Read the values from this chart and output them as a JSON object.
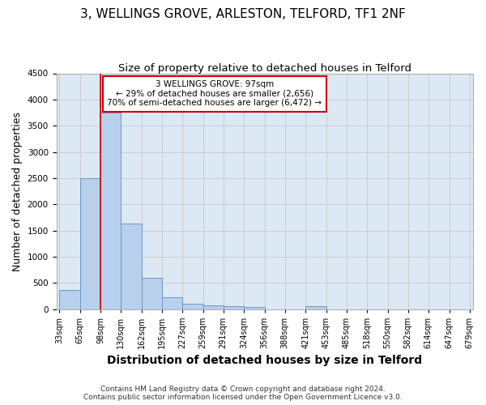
{
  "title": "3, WELLINGS GROVE, ARLESTON, TELFORD, TF1 2NF",
  "subtitle": "Size of property relative to detached houses in Telford",
  "xlabel": "Distribution of detached houses by size in Telford",
  "ylabel": "Number of detached properties",
  "annotation_line1": "3 WELLINGS GROVE: 97sqm",
  "annotation_line2": "← 29% of detached houses are smaller (2,656)",
  "annotation_line3": "70% of semi-detached houses are larger (6,472) →",
  "footer_line1": "Contains HM Land Registry data © Crown copyright and database right 2024.",
  "footer_line2": "Contains public sector information licensed under the Open Government Licence v3.0.",
  "bin_edges": [
    33,
    65,
    98,
    130,
    162,
    195,
    227,
    259,
    291,
    324,
    356,
    388,
    421,
    453,
    485,
    518,
    550,
    582,
    614,
    647,
    679
  ],
  "bar_heights": [
    370,
    2500,
    3750,
    1640,
    590,
    225,
    110,
    70,
    50,
    40,
    0,
    0,
    60,
    0,
    0,
    0,
    0,
    0,
    0,
    0
  ],
  "tick_labels": [
    "33sqm",
    "65sqm",
    "98sqm",
    "130sqm",
    "162sqm",
    "195sqm",
    "227sqm",
    "259sqm",
    "291sqm",
    "324sqm",
    "356sqm",
    "388sqm",
    "421sqm",
    "453sqm",
    "485sqm",
    "518sqm",
    "550sqm",
    "582sqm",
    "614sqm",
    "647sqm",
    "679sqm"
  ],
  "bar_color": "#b8d0eb",
  "bar_edge_color": "#6699cc",
  "vline_color": "#cc0000",
  "vline_x": 98,
  "annotation_box_color": "#cc0000",
  "ylim": [
    0,
    4500
  ],
  "yticks": [
    0,
    500,
    1000,
    1500,
    2000,
    2500,
    3000,
    3500,
    4000,
    4500
  ],
  "grid_color": "#cccccc",
  "bg_color": "#dde8f5",
  "title_fontsize": 11,
  "subtitle_fontsize": 9.5,
  "axis_label_fontsize": 9,
  "tick_fontsize": 7,
  "footer_fontsize": 6.5
}
